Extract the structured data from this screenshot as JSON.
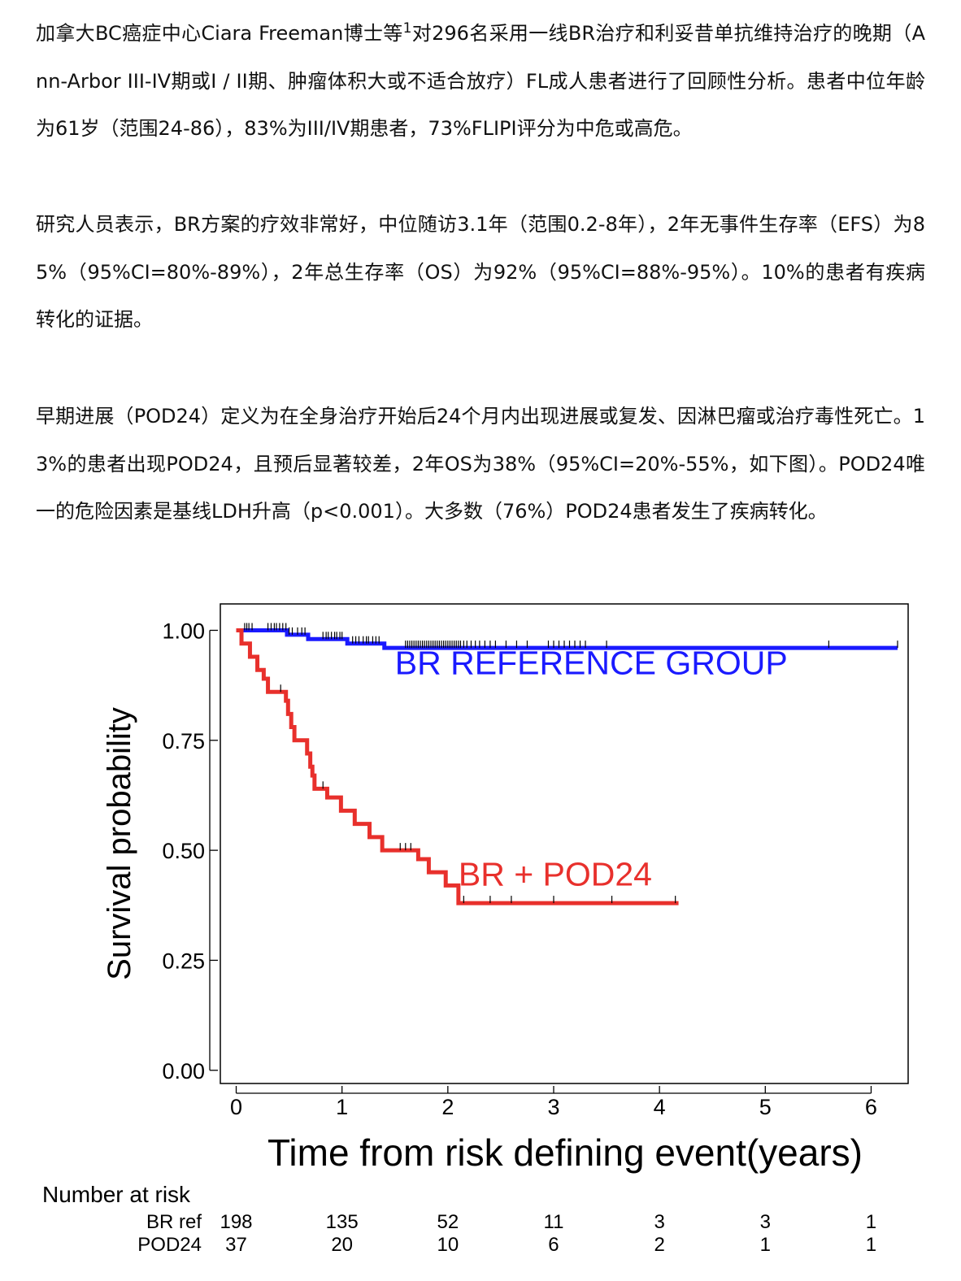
{
  "article": {
    "para1_before_sup": "加拿大BC癌症中心Ciara Freeman博士等",
    "para1_sup": "1",
    "para1_after_sup": "对296名采用一线BR治疗和利妥昔单抗维持治疗的晚期（Ann-Arbor III-IV期或I / II期、肿瘤体积大或不适合放疗）FL成人患者进行了回顾性分析。患者中位年龄为61岁（范围24-86），83%为III/IV期患者，73%FLIPI评分为中危或高危。",
    "para2": "研究人员表示，BR方案的疗效非常好，中位随访3.1年（范围0.2-8年），2年无事件生存率（EFS）为85%（95%CI=80%-89%），2年总生存率（OS）为92%（95%CI=88%-95%）。10%的患者有疾病转化的证据。",
    "para3": "早期进展（POD24）定义为在全身治疗开始后24个月内出现进展或复发、因淋巴瘤或治疗毒性死亡。13%的患者出现POD24，且预后显著较差，2年OS为38%（95%CI=20%-55%，如下图）。POD24唯一的危险因素是基线LDH升高（p<0.001）。大多数（76%）POD24患者发生了疾病转化。"
  },
  "chart_data": {
    "type": "line",
    "subtype": "kaplan-meier-step",
    "title": "",
    "xlabel": "Time from risk defining event(years)",
    "ylabel": "Survival probability",
    "xlim": [
      -0.15,
      6.35
    ],
    "ylim": [
      -0.03,
      1.06
    ],
    "x_ticks": [
      "0",
      "1",
      "2",
      "3",
      "4",
      "5",
      "6"
    ],
    "y_ticks": [
      "0.00",
      "0.25",
      "0.50",
      "0.75",
      "1.00"
    ],
    "grid": false,
    "series": [
      {
        "name": "BR REFERENCE GROUP",
        "color": "#1a1aff",
        "steps": [
          [
            0,
            1.0
          ],
          [
            0.48,
            0.99
          ],
          [
            0.68,
            0.98
          ],
          [
            1.05,
            0.97
          ],
          [
            1.4,
            0.96
          ],
          [
            6.25,
            0.96
          ]
        ],
        "censor_times": [
          0.08,
          0.1,
          0.12,
          0.15,
          0.3,
          0.33,
          0.36,
          0.38,
          0.41,
          0.44,
          0.47,
          0.5,
          0.53,
          0.58,
          0.62,
          0.65,
          0.82,
          0.85,
          0.87,
          0.9,
          0.93,
          0.95,
          0.98,
          1.0,
          1.1,
          1.13,
          1.16,
          1.2,
          1.23,
          1.25,
          1.29,
          1.32,
          1.35,
          1.6,
          1.62,
          1.64,
          1.66,
          1.68,
          1.7,
          1.72,
          1.74,
          1.76,
          1.78,
          1.8,
          1.82,
          1.84,
          1.86,
          1.88,
          1.9,
          1.92,
          1.94,
          1.96,
          1.98,
          2.0,
          2.02,
          2.04,
          2.06,
          2.08,
          2.1,
          2.12,
          2.15,
          2.18,
          2.22,
          2.26,
          2.3,
          2.35,
          2.4,
          2.45,
          2.55,
          2.65,
          2.75,
          2.95,
          3.0,
          3.05,
          3.1,
          3.15,
          3.2,
          3.25,
          3.3,
          3.5,
          5.6,
          6.25
        ]
      },
      {
        "name": "BR + POD24",
        "color": "#e8302c",
        "steps": [
          [
            0,
            1.0
          ],
          [
            0.05,
            0.97
          ],
          [
            0.13,
            0.94
          ],
          [
            0.2,
            0.91
          ],
          [
            0.26,
            0.89
          ],
          [
            0.3,
            0.86
          ],
          [
            0.47,
            0.84
          ],
          [
            0.49,
            0.81
          ],
          [
            0.52,
            0.78
          ],
          [
            0.55,
            0.75
          ],
          [
            0.67,
            0.72
          ],
          [
            0.7,
            0.69
          ],
          [
            0.72,
            0.67
          ],
          [
            0.74,
            0.64
          ],
          [
            0.86,
            0.62
          ],
          [
            0.99,
            0.59
          ],
          [
            1.12,
            0.56
          ],
          [
            1.26,
            0.53
          ],
          [
            1.38,
            0.5
          ],
          [
            1.72,
            0.48
          ],
          [
            1.82,
            0.45
          ],
          [
            1.98,
            0.42
          ],
          [
            2.1,
            0.38
          ],
          [
            4.18,
            0.38
          ]
        ],
        "censor_times": [
          0.42,
          0.82,
          1.55,
          1.6,
          1.65,
          2.15,
          2.4,
          2.6,
          3.0,
          3.55,
          4.15
        ]
      }
    ],
    "annotations": [
      {
        "text": "BR REFERENCE GROUP",
        "color": "#1a1aff",
        "x": 1.5,
        "y": 0.9
      },
      {
        "text": "BR + POD24",
        "color": "#e8302c",
        "x": 2.1,
        "y": 0.42
      }
    ],
    "risk_table": {
      "title": "Number at risk",
      "times": [
        "0",
        "1",
        "2",
        "3",
        "4",
        "5",
        "6"
      ],
      "rows": [
        {
          "label": "BR ref",
          "values": [
            "198",
            "135",
            "52",
            "11",
            "3",
            "3",
            "1"
          ]
        },
        {
          "label": "POD24",
          "values": [
            "37",
            "20",
            "10",
            "6",
            "2",
            "1",
            "1"
          ]
        }
      ]
    }
  }
}
